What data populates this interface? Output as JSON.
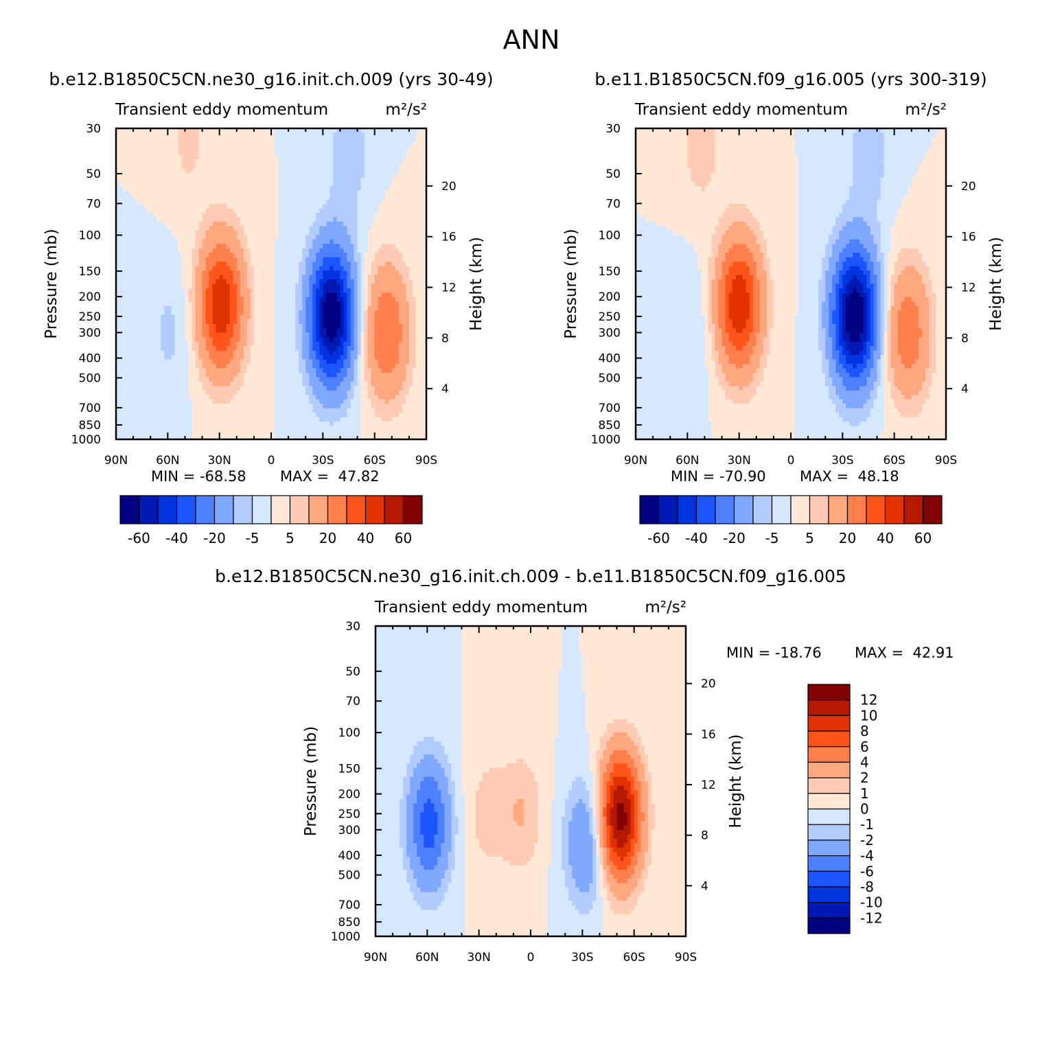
{
  "figure_title": "ANN",
  "colors": {
    "main_scale": [
      "#000080",
      "#0019b2",
      "#0033e0",
      "#1a55ff",
      "#4d80ff",
      "#80a8ff",
      "#b3ccff",
      "#d6e8ff",
      "#ffe8d6",
      "#ffcbb3",
      "#ffa880",
      "#ff804d",
      "#ff551a",
      "#e03300",
      "#b21900",
      "#800000"
    ],
    "diff_scale": [
      "#000080",
      "#0019b2",
      "#0033e0",
      "#1a55ff",
      "#4d80ff",
      "#80a8ff",
      "#b3ccff",
      "#d6e8ff",
      "#ffe8d6",
      "#ffcbb3",
      "#ffa880",
      "#ff804d",
      "#ff551a",
      "#e03300",
      "#b21900",
      "#800000"
    ]
  },
  "chart_data": [
    {
      "type": "heatmap",
      "panel": "top-left",
      "case_title": "b.e12.B1850C5CN.ne30_g16.init.ch.009 (yrs 30-49)",
      "title": "Transient eddy momentum",
      "units": "m²/s²",
      "ylabel": "Pressure (mb)",
      "ylabel_right": "Height (km)",
      "x_ticks": [
        "90N",
        "60N",
        "30N",
        "0",
        "30S",
        "60S",
        "90S"
      ],
      "y_ticks": [
        30,
        50,
        70,
        100,
        150,
        200,
        250,
        300,
        400,
        500,
        700,
        850,
        1000
      ],
      "height_ticks": [
        4,
        8,
        12,
        16,
        20
      ],
      "xlim": [
        90,
        -90
      ],
      "ylim": [
        1000,
        30
      ],
      "y_scale": "log",
      "min": -68.58,
      "max": 47.82,
      "min_label": "MIN = -68.58",
      "max_label": "MAX =  47.82",
      "colorbar_labels": [
        "-60",
        "-40",
        "-20",
        "-5",
        "5",
        "20",
        "40",
        "60"
      ],
      "features": [
        {
          "lat": 29,
          "p": 220,
          "value": 47.8
        },
        {
          "lat": -35,
          "p": 250,
          "value": -68.6
        },
        {
          "lat": -67,
          "p": 300,
          "value": 30
        },
        {
          "lat": 59,
          "p": 300,
          "value": -6
        },
        {
          "lat": 48,
          "p": 35,
          "value": 6
        },
        {
          "lat": -45,
          "p": 40,
          "value": -8
        }
      ]
    },
    {
      "type": "heatmap",
      "panel": "top-right",
      "case_title": "b.e11.B1850C5CN.f09_g16.005 (yrs 300-319)",
      "title": "Transient eddy momentum",
      "units": "m²/s²",
      "ylabel": "Pressure (mb)",
      "ylabel_right": "Height (km)",
      "x_ticks": [
        "90N",
        "60N",
        "30N",
        "0",
        "30S",
        "60S",
        "90S"
      ],
      "y_ticks": [
        30,
        50,
        70,
        100,
        150,
        200,
        250,
        300,
        400,
        500,
        700,
        850,
        1000
      ],
      "height_ticks": [
        4,
        8,
        12,
        16,
        20
      ],
      "xlim": [
        90,
        -90
      ],
      "ylim": [
        1000,
        30
      ],
      "y_scale": "log",
      "min": -70.9,
      "max": 48.18,
      "min_label": "MIN = -70.90",
      "max_label": "MAX =  48.18",
      "colorbar_labels": [
        "-60",
        "-40",
        "-20",
        "-5",
        "5",
        "20",
        "40",
        "60"
      ],
      "features": [
        {
          "lat": 30,
          "p": 220,
          "value": 48.2
        },
        {
          "lat": -37,
          "p": 250,
          "value": -70.9
        },
        {
          "lat": -68,
          "p": 300,
          "value": 27
        },
        {
          "lat": 58,
          "p": 300,
          "value": -5
        },
        {
          "lat": 52,
          "p": 35,
          "value": 8
        },
        {
          "lat": -45,
          "p": 40,
          "value": -8
        }
      ]
    },
    {
      "type": "heatmap",
      "panel": "bottom",
      "case_title": "b.e12.B1850C5CN.ne30_g16.init.ch.009 - b.e11.B1850C5CN.f09_g16.005",
      "title": "Transient eddy momentum",
      "units": "m²/s²",
      "ylabel": "Pressure (mb)",
      "ylabel_right": "Height (km)",
      "x_ticks": [
        "90N",
        "60N",
        "30N",
        "0",
        "30S",
        "60S",
        "90S"
      ],
      "y_ticks": [
        30,
        50,
        70,
        100,
        150,
        200,
        250,
        300,
        400,
        500,
        700,
        850,
        1000
      ],
      "height_ticks": [
        4,
        8,
        12,
        16,
        20
      ],
      "xlim": [
        90,
        -90
      ],
      "ylim": [
        1000,
        30
      ],
      "y_scale": "log",
      "min": -18.76,
      "max": 42.91,
      "min_label": "MIN = -18.76",
      "max_label": "MAX =  42.91",
      "colorbar_labels": [
        "12",
        "10",
        "8",
        "6",
        "4",
        "2",
        "1",
        "0",
        "-1",
        "-2",
        "-4",
        "-6",
        "-8",
        "-10",
        "-12"
      ],
      "features": [
        {
          "lat": 59,
          "p": 280,
          "value": -7
        },
        {
          "lat": -52,
          "p": 260,
          "value": 13
        },
        {
          "lat": -32,
          "p": 350,
          "value": -4
        },
        {
          "lat": 5,
          "p": 250,
          "value": 2
        },
        {
          "lat": 25,
          "p": 250,
          "value": 1.5
        }
      ]
    }
  ]
}
